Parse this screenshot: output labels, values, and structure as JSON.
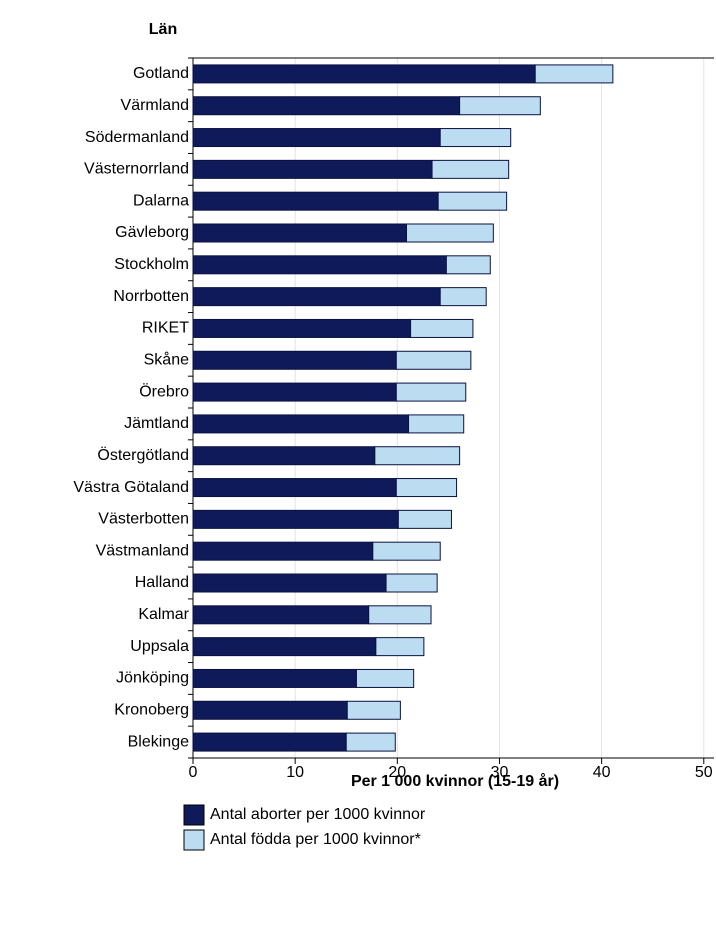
{
  "chart_data": {
    "type": "stacked_barh",
    "category_label": "Län",
    "value_label": "Per 1 000 kvinnor (15-19 år)",
    "categories": [
      "Gotland",
      "Värmland",
      "Södermanland",
      "Västernorrland",
      "Dalarna",
      "Gävleborg",
      "Stockholm",
      "Norrbotten",
      "RIKET",
      "Skåne",
      "Örebro",
      "Jämtland",
      "Östergötland",
      "Västra Götaland",
      "Västerbotten",
      "Västmanland",
      "Halland",
      "Kalmar",
      "Uppsala",
      "Jönköping",
      "Kronoberg",
      "Blekinge"
    ],
    "series": [
      {
        "name": "Antal aborter per 1000 kvinnor",
        "color": "#0f1a5a",
        "values": [
          33.5,
          26.1,
          24.2,
          23.4,
          24.0,
          20.9,
          24.8,
          24.2,
          21.3,
          19.9,
          19.9,
          21.1,
          17.8,
          19.9,
          20.1,
          17.6,
          18.9,
          17.2,
          17.9,
          16.0,
          15.1,
          15.0
        ]
      },
      {
        "name": "Antal födda per 1000 kvinnor*",
        "color": "#bcdcf2",
        "values": [
          7.6,
          7.9,
          6.9,
          7.5,
          6.7,
          8.5,
          4.3,
          4.5,
          6.1,
          7.3,
          6.8,
          5.4,
          8.3,
          5.9,
          5.2,
          6.6,
          5.0,
          6.1,
          4.7,
          5.6,
          5.2,
          4.8
        ]
      }
    ],
    "xlim": [
      0,
      51
    ],
    "xticks": [
      0,
      10,
      20,
      30,
      40,
      50
    ],
    "grid": true
  }
}
